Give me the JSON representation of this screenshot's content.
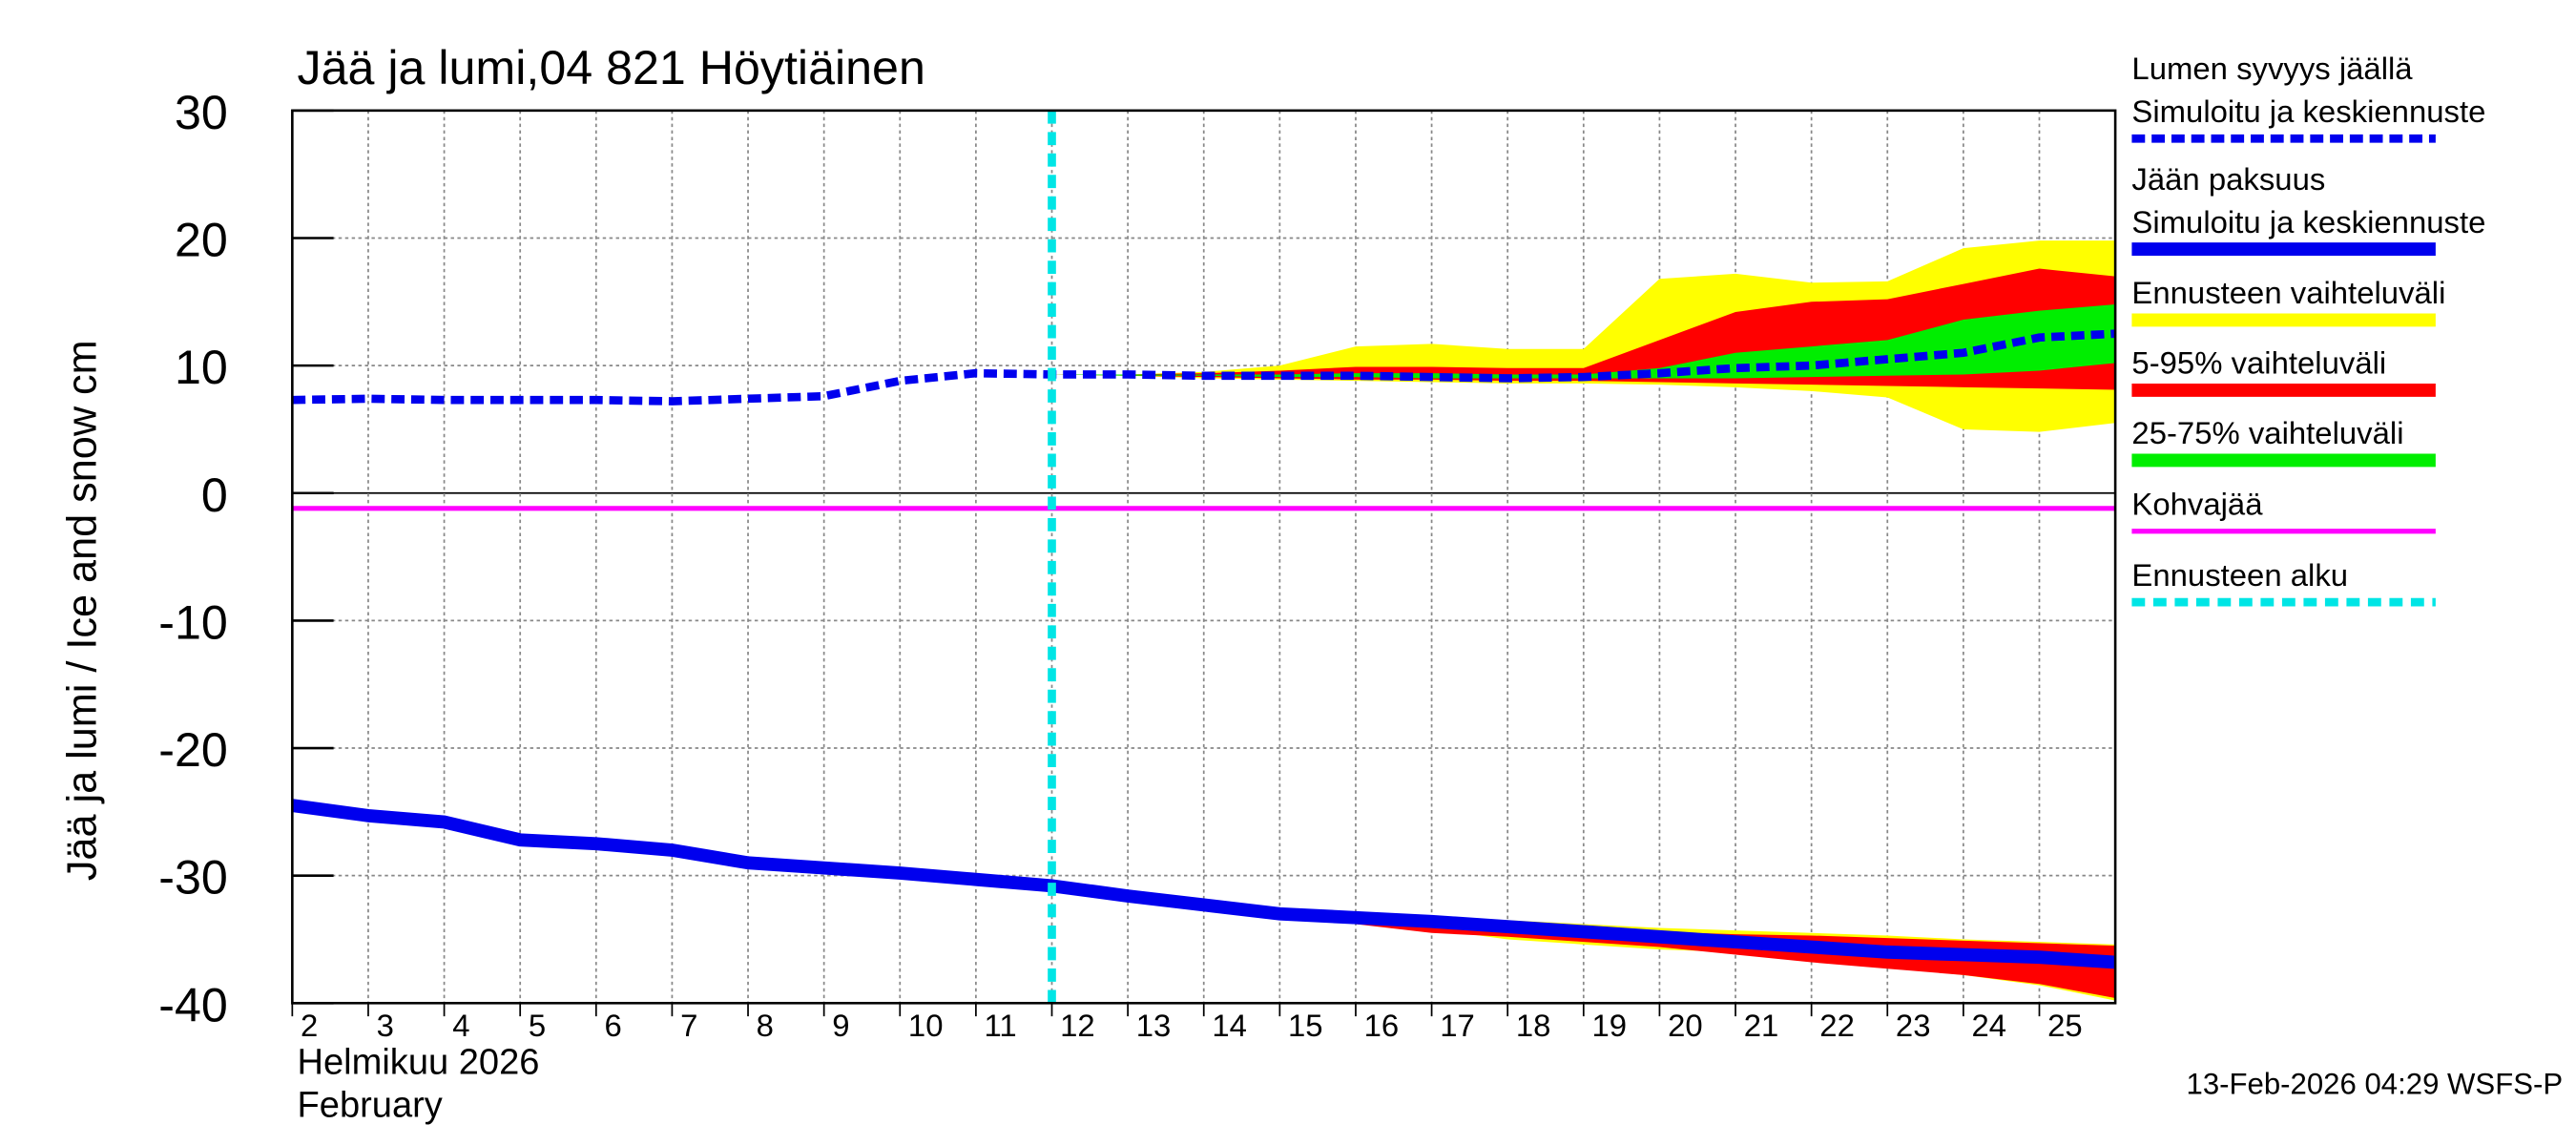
{
  "chart_data": {
    "type": "line",
    "title": "Jää ja lumi,04 821 Höytiäinen",
    "ylabel": "Jää ja lumi / Ice and snow    cm",
    "xlabel": [
      "Helmikuu  2026",
      "February"
    ],
    "footer": "13-Feb-2026 04:29 WSFS-P",
    "xlim": [
      2,
      26
    ],
    "xticks": [
      2,
      3,
      4,
      5,
      6,
      7,
      8,
      9,
      10,
      11,
      12,
      13,
      14,
      15,
      16,
      17,
      18,
      19,
      20,
      21,
      22,
      23,
      24,
      25
    ],
    "ylim": [
      -40,
      30
    ],
    "yticks": [
      -40,
      -30,
      -20,
      -10,
      0,
      10,
      20,
      30
    ],
    "grid": true,
    "x": [
      2,
      3,
      4,
      5,
      6,
      7,
      8,
      9,
      10,
      11,
      12,
      13,
      14,
      15,
      16,
      17,
      18,
      19,
      20,
      21,
      22,
      23,
      24,
      25,
      26
    ],
    "series": [
      {
        "name": "Lumen syvyys jäällä",
        "label2": "Simuloitu ja keskiennuste",
        "color": "#0000ee",
        "dashed": true,
        "values": [
          7.3,
          7.4,
          7.3,
          7.3,
          7.3,
          7.2,
          7.4,
          7.6,
          8.8,
          9.4,
          9.3,
          9.3,
          9.2,
          9.2,
          9.2,
          9.1,
          9.0,
          9.1,
          9.4,
          9.8,
          10.0,
          10.5,
          11.0,
          12.2,
          12.5
        ]
      },
      {
        "name": "Jään paksuus",
        "label2": "Simuloitu ja keskiennuste",
        "color": "#0000ee",
        "dashed": false,
        "values": [
          -24.5,
          -25.3,
          -25.8,
          -27.2,
          -27.5,
          -28.0,
          -29.0,
          -29.4,
          -29.8,
          -30.3,
          -30.8,
          -31.6,
          -32.3,
          -33.0,
          -33.3,
          -33.6,
          -34.0,
          -34.4,
          -34.8,
          -35.2,
          -35.6,
          -36.0,
          -36.2,
          -36.4,
          -36.8
        ]
      }
    ],
    "forecast_x": [
      12,
      13,
      14,
      15,
      16,
      17,
      18,
      19,
      20,
      21,
      22,
      23,
      24,
      25,
      26
    ],
    "bands": [
      {
        "name": "Ennusteen vaihteluväli",
        "color": "#ffff00",
        "snow_upper": [
          9.3,
          9.3,
          9.5,
          10,
          11.5,
          11.7,
          11.3,
          11.3,
          16.8,
          17.2,
          16.5,
          16.6,
          19.2,
          19.8,
          19.8
        ],
        "snow_lower": [
          9.3,
          9.2,
          9,
          8.9,
          8.8,
          8.7,
          8.6,
          8.6,
          8.5,
          8.3,
          8,
          7.5,
          5,
          4.8,
          5.5
        ],
        "ice_upper": [
          -30.8,
          -31.6,
          -32.3,
          -32.8,
          -33,
          -33.2,
          -33.5,
          -33.8,
          -34.1,
          -34.3,
          -34.5,
          -34.7,
          -35,
          -35.2,
          -35.4
        ],
        "ice_lower": [
          -30.8,
          -31.6,
          -32.3,
          -33.2,
          -33.6,
          -34.2,
          -35,
          -35.4,
          -35.8,
          -36,
          -36.6,
          -37.2,
          -37.8,
          -38.6,
          -39.8
        ]
      },
      {
        "name": "5-95% vaihteluväli",
        "color": "#ff0000",
        "snow_upper": [
          9.3,
          9.3,
          9.4,
          9.6,
          9.9,
          9.9,
          9.8,
          9.8,
          12,
          14.2,
          15,
          15.2,
          16.4,
          17.6,
          17
        ],
        "snow_lower": [
          9.3,
          9.2,
          9.1,
          9,
          8.9,
          8.9,
          8.8,
          8.8,
          8.7,
          8.6,
          8.5,
          8.4,
          8.3,
          8.2,
          8.1
        ],
        "ice_upper": [
          -30.8,
          -31.6,
          -32.3,
          -32.9,
          -33.2,
          -33.4,
          -33.8,
          -34.1,
          -34.4,
          -34.6,
          -34.7,
          -34.9,
          -35.1,
          -35.3,
          -35.5
        ],
        "ice_lower": [
          -30.8,
          -31.6,
          -32.3,
          -33.3,
          -33.8,
          -34.5,
          -34.8,
          -35.2,
          -35.6,
          -36.2,
          -36.8,
          -37.3,
          -37.8,
          -38.5,
          -39.6
        ]
      },
      {
        "name": "25-75% vaihteluväli",
        "color": "#00ee00",
        "snow_upper": [
          9.3,
          9.3,
          9.3,
          9.3,
          9.4,
          9.4,
          9.3,
          9.3,
          9.8,
          11,
          11.5,
          12,
          13.6,
          14.3,
          14.8
        ],
        "snow_lower": [
          9.3,
          9.2,
          9.2,
          9.1,
          9.1,
          9,
          9,
          9,
          9,
          9,
          9.1,
          9.2,
          9.3,
          9.6,
          10.2
        ],
        "ice_upper": [
          -30.8,
          -31.6,
          -32.3,
          -33,
          -33.3,
          -33.5,
          -33.9,
          -34.3,
          -34.7,
          -35.1,
          -35.5,
          -35.9,
          -36.1,
          -36.3,
          -36.5
        ],
        "ice_lower": [
          -30.8,
          -31.6,
          -32.3,
          -33,
          -33.3,
          -33.7,
          -34.1,
          -34.5,
          -34.9,
          -35.3,
          -35.7,
          -36.1,
          -36.4,
          -36.8,
          -37.1
        ]
      }
    ],
    "slush": {
      "name": "Kohvajää",
      "color": "#ff00ff",
      "value": -1.2
    },
    "forecast_start": {
      "name": "Ennusteen alku",
      "color": "#00e5e5",
      "value": 12
    }
  }
}
